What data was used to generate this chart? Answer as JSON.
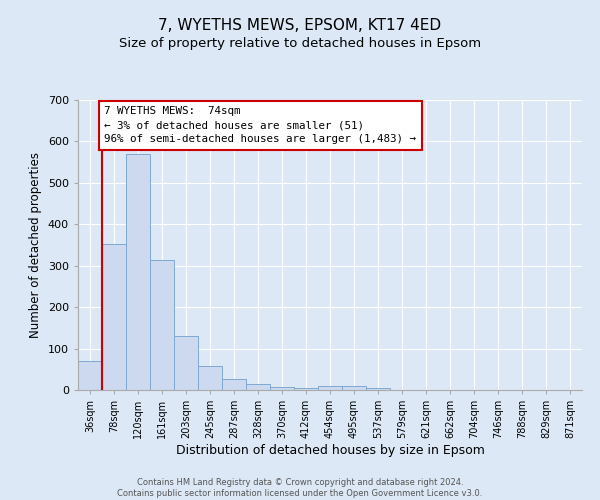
{
  "title": "7, WYETHS MEWS, EPSOM, KT17 4ED",
  "subtitle": "Size of property relative to detached houses in Epsom",
  "xlabel": "Distribution of detached houses by size in Epsom",
  "ylabel": "Number of detached properties",
  "bar_labels": [
    "36sqm",
    "78sqm",
    "120sqm",
    "161sqm",
    "203sqm",
    "245sqm",
    "287sqm",
    "328sqm",
    "370sqm",
    "412sqm",
    "454sqm",
    "495sqm",
    "537sqm",
    "579sqm",
    "621sqm",
    "662sqm",
    "704sqm",
    "746sqm",
    "788sqm",
    "829sqm",
    "871sqm"
  ],
  "bar_values": [
    70,
    352,
    570,
    313,
    130,
    57,
    27,
    15,
    7,
    4,
    10,
    10,
    4,
    0,
    0,
    0,
    0,
    0,
    0,
    0,
    0
  ],
  "bar_color": "#ccd9ee",
  "bar_edgecolor": "#7fa8d1",
  "annotation_text": "7 WYETHS MEWS:  74sqm\n← 3% of detached houses are smaller (51)\n96% of semi-detached houses are larger (1,483) →",
  "annotation_box_facecolor": "#ffffff",
  "annotation_box_edgecolor": "#cc0000",
  "marker_line_color": "#cc0000",
  "footer_text": "Contains HM Land Registry data © Crown copyright and database right 2024.\nContains public sector information licensed under the Open Government Licence v3.0.",
  "bg_color": "#dce8f5",
  "plot_bg_color": "#dce8f5",
  "ylim": [
    0,
    700
  ],
  "yticks": [
    0,
    100,
    200,
    300,
    400,
    500,
    600,
    700
  ],
  "title_fontsize": 11,
  "subtitle_fontsize": 9.5,
  "xlabel_fontsize": 9,
  "ylabel_fontsize": 8.5
}
